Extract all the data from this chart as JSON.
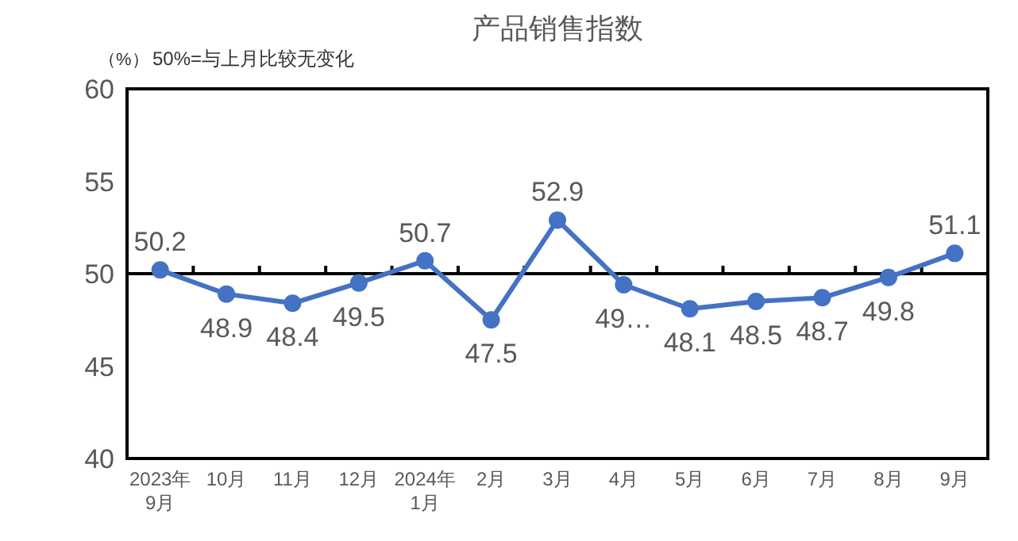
{
  "chart_data": {
    "type": "line",
    "title": "产品销售指数",
    "ylabel": "（%）",
    "annotations": [
      "50%=与上月比较无变化"
    ],
    "categories": [
      "2023年\n9月",
      "10月",
      "11月",
      "12月",
      "2024年\n1月",
      "2月",
      "3月",
      "4月",
      "5月",
      "6月",
      "7月",
      "8月",
      "9月"
    ],
    "series": [
      {
        "color": "#4472c4",
        "values": [
          50.2,
          48.9,
          48.4,
          49.5,
          50.7,
          47.5,
          52.9,
          49.4,
          48.1,
          48.5,
          48.7,
          49.8,
          51.1
        ],
        "value_labels": [
          "50.2",
          "48.9",
          "48.4",
          "49.5",
          "50.7",
          "47.5",
          "52.9",
          "49…",
          "48.1",
          "48.5",
          "48.7",
          "49.8",
          "51.1"
        ]
      }
    ],
    "ylim": [
      40,
      60
    ],
    "yticks": [
      40,
      45,
      50,
      55,
      60
    ],
    "ref_lines": [
      {
        "axis": "y",
        "value": 50,
        "color": "#000000"
      }
    ],
    "grid": false,
    "marker": "circle",
    "line_style": "solid"
  }
}
